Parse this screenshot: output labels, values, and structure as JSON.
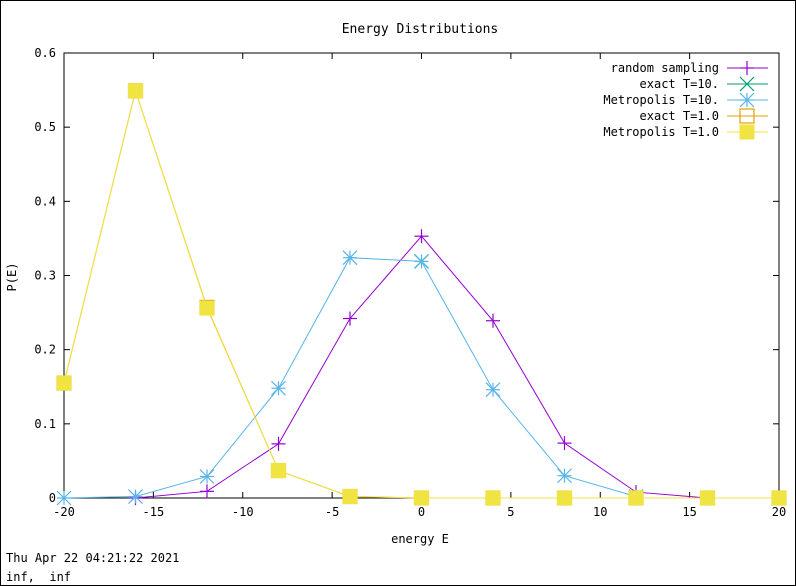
{
  "chart_data": {
    "type": "line",
    "title": "Energy Distributions",
    "xlabel": "energy E",
    "ylabel": "P(E)",
    "xlim": [
      -20,
      20
    ],
    "ylim": [
      0,
      0.6
    ],
    "x_ticks": [
      "-20",
      "-15",
      "-10",
      "-5",
      "0",
      "5",
      "10",
      "15",
      "20"
    ],
    "x_tick_values": [
      -20,
      -15,
      -10,
      -5,
      0,
      5,
      10,
      15,
      20
    ],
    "y_ticks": [
      "0",
      "0.1",
      "0.2",
      "0.3",
      "0.4",
      "0.5",
      "0.6"
    ],
    "y_tick_values": [
      0,
      0.1,
      0.2,
      0.3,
      0.4,
      0.5,
      0.6
    ],
    "grid": false,
    "legend_position": "top-right",
    "series": [
      {
        "name": "random sampling",
        "color": "#9400d3",
        "marker": "plus",
        "x": [
          -16,
          -12,
          -8,
          -4,
          0,
          4,
          8,
          12,
          16
        ],
        "y": [
          0.0,
          0.009,
          0.073,
          0.242,
          0.353,
          0.239,
          0.074,
          0.008,
          0.0
        ]
      },
      {
        "name": "exact T=10.",
        "color": "#009e73",
        "marker": "cross",
        "x": [
          0
        ],
        "y": [
          0.319
        ]
      },
      {
        "name": "Metropolis T=10.",
        "color": "#56b4e9",
        "marker": "star",
        "x": [
          -20,
          -16,
          -12,
          -8,
          -4,
          0,
          4,
          8,
          12
        ],
        "y": [
          0.0,
          0.002,
          0.029,
          0.148,
          0.324,
          0.319,
          0.146,
          0.03,
          0.002
        ]
      },
      {
        "name": "exact T=1.0",
        "color": "#e69f00",
        "marker": "box",
        "x": [
          -20,
          -16,
          -12,
          -8,
          -4,
          0,
          4,
          8,
          12,
          16,
          20
        ],
        "y": [
          0.155,
          0.549,
          0.257,
          0.037,
          0.002,
          0.0,
          0.0,
          0.0,
          0.0,
          0.0,
          0.0
        ]
      },
      {
        "name": "Metropolis T=1.0",
        "color": "#f0e442",
        "marker": "filled-box",
        "x": [
          -20,
          -16,
          -12,
          -8,
          -4,
          0,
          4,
          8,
          12,
          16,
          20
        ],
        "y": [
          0.155,
          0.549,
          0.256,
          0.037,
          0.002,
          0.0,
          0.0,
          0.0,
          0.0,
          0.0,
          0.0
        ]
      }
    ]
  },
  "status": {
    "date": "Thu Apr 22 04:21:22 2021",
    "coords": "inf,  inf"
  }
}
